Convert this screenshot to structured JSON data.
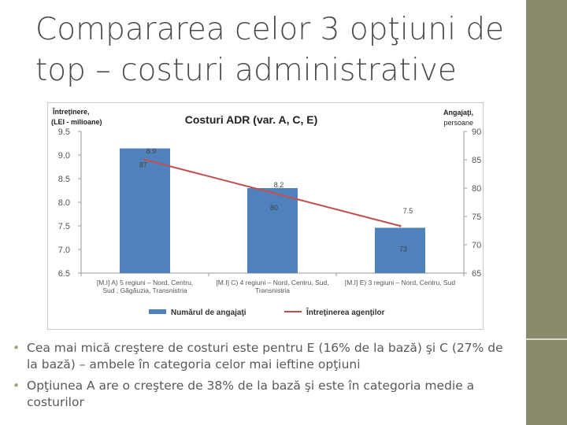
{
  "slide": {
    "title_line1": "Compararea celor 3 opţiuni de",
    "title_line2": "top – costuri administrative",
    "bullets": [
      "Cea mai mică creştere de costuri este pentru E (16% de la bază) şi C (27% de la bază) – ambele în categoria celor mai ieftine opţiuni",
      "Opţiunea A are o creştere de 38% de la bază şi este în categoria medie a costurilor"
    ]
  },
  "colors": {
    "bar": "#4f81bd",
    "line": "#c0504d",
    "sidebar": "#8a8a6c"
  },
  "chart_data": {
    "type": "bar",
    "title": "Costuri ADR  (var. A, C, E)",
    "ylabel_left_line1": "Întreţinere,",
    "ylabel_left_line2": "(LEI - milioane)",
    "ylabel_right_line1": "Angajaţi,",
    "ylabel_right_line2": "persoane",
    "ylim_left": [
      6.5,
      9.5
    ],
    "yticks_left": [
      "9.5",
      "9.0",
      "8.5",
      "8.0",
      "7.5",
      "7.0",
      "6.5"
    ],
    "ylim_right": [
      65,
      90
    ],
    "yticks_right": [
      "90",
      "85",
      "80",
      "75",
      "70",
      "65"
    ],
    "categories": [
      [
        "[M.I] A) 5 regiuni – Nord, Centru,",
        "Sud , Găgăuzia, Transnistria"
      ],
      [
        "[M.I] C) 4 regiuni – Nord, Centru, Sud,",
        "Transnistria"
      ],
      [
        "[M.I] E) 3 regiuni – Nord, Centru, Sud",
        ""
      ]
    ],
    "series": [
      {
        "name": "Numărul de angajaţi",
        "kind": "bar",
        "axis": "right",
        "values": [
          87,
          80,
          73
        ],
        "labels": [
          "87",
          "80",
          "73"
        ]
      },
      {
        "name": "Întreţinerea agenţilor",
        "kind": "line",
        "axis": "left",
        "values": [
          8.9,
          8.2,
          7.5
        ],
        "labels": [
          "8.9",
          "8.2",
          "7.5"
        ]
      }
    ],
    "grid": false,
    "legend": "bottom"
  }
}
